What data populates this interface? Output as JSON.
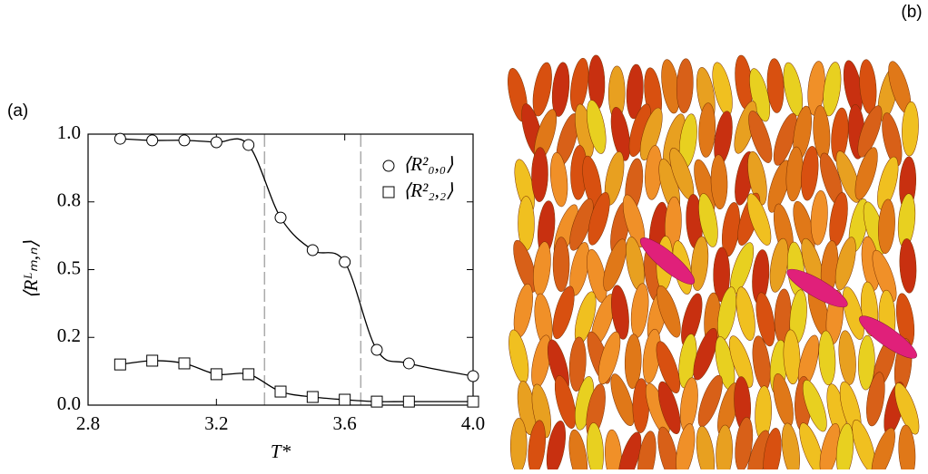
{
  "chart_data": {
    "type": "line",
    "panel_labels": [
      "(a)",
      "(b)"
    ],
    "x_label": "T*",
    "y_label": "⟨Rᴸₘ,ₙ⟩",
    "x": [
      2.9,
      3.0,
      3.1,
      3.2,
      3.3,
      3.4,
      3.5,
      3.6,
      3.7,
      3.8,
      4.0
    ],
    "series": [
      {
        "name": "⟨R²₀,₀⟩",
        "marker": "circle",
        "color": "#000000",
        "values": [
          0.983,
          0.977,
          0.977,
          0.97,
          0.96,
          0.692,
          0.572,
          0.528,
          0.204,
          0.154,
          0.107
        ]
      },
      {
        "name": "⟨R²₂,₂⟩",
        "marker": "square",
        "color": "#000000",
        "values": [
          0.15,
          0.164,
          0.154,
          0.114,
          0.114,
          0.05,
          0.03,
          0.02,
          0.013,
          0.013,
          0.013
        ]
      }
    ],
    "vlines": [
      3.35,
      3.65
    ],
    "xlim": [
      2.8,
      4.0
    ],
    "xticks": [
      2.8,
      3.2,
      3.6,
      {
        "value": 4,
        "label": "4.0"
      }
    ],
    "ylim": [
      0,
      1
    ],
    "yticks": [
      {
        "value": 0,
        "label": "0.0"
      },
      {
        "value": 0.25,
        "label": "0.2"
      },
      {
        "value": 0.5,
        "label": "0.5"
      },
      {
        "value": 0.75,
        "label": "0.8"
      },
      {
        "value": 1,
        "label": "1.0"
      }
    ],
    "legend": "upper right"
  }
}
